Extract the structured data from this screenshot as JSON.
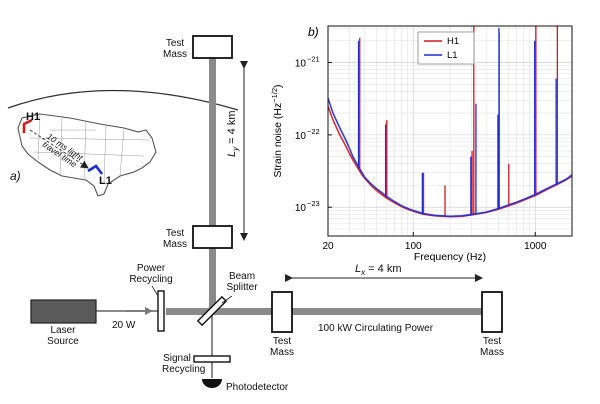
{
  "panel_a": {
    "label": "a)",
    "sites": [
      "H1",
      "L1"
    ],
    "arrow_text": "10 ms light\ntravel time"
  },
  "interferometer": {
    "test_mass_top": "Test\nMass",
    "test_mass_mid": "Test\nMass",
    "test_mass_near_x": "Test\nMass",
    "test_mass_end_x": "Test\nMass",
    "ly_symbol": "L",
    "ly_subscript": "y",
    "ly_value": " = 4 km",
    "lx_symbol": "L",
    "lx_subscript": "x",
    "lx_value": " = 4 km",
    "power_recycling": "Power\nRecycling",
    "beam_splitter": "Beam\nSplitter",
    "laser_source": "Laser\nSource",
    "laser_power": "20 W",
    "circulating_power": "100 kW Circulating Power",
    "signal_recycling": "Signal\nRecycling",
    "photodetector": "Photodetector",
    "colors": {
      "laser_box": "#5a5a5a",
      "beam": "#8a8a8a",
      "mirror_fill": "#ffffff"
    }
  },
  "chart_data": {
    "type": "line",
    "panel_label": "b)",
    "xlabel": "Frequency (Hz)",
    "ylabel": "Strain noise (Hz",
    "ylabel_exponent": "−1/2",
    "ylabel_close": ")",
    "x_scale": "log",
    "y_scale": "log",
    "xlim": [
      20,
      2000
    ],
    "ylim": [
      4e-24,
      3.2e-21
    ],
    "x_ticks": [
      {
        "value": 20,
        "label": "20"
      },
      {
        "value": 100,
        "label": "100"
      },
      {
        "value": 1000,
        "label": "1000"
      }
    ],
    "y_ticks": [
      {
        "value": 1e-23,
        "base": "10",
        "exp": "−23"
      },
      {
        "value": 1e-22,
        "base": "10",
        "exp": "−22"
      },
      {
        "value": 1e-21,
        "base": "10",
        "exp": "−21"
      }
    ],
    "grid": true,
    "legend_position": "top-center",
    "series": [
      {
        "name": "H1",
        "color": "#d7191c",
        "x": [
          20,
          22,
          25,
          28,
          30,
          32,
          35,
          38,
          40,
          45,
          50,
          55,
          60,
          70,
          80,
          90,
          100,
          120,
          150,
          200,
          250,
          300,
          400,
          500,
          600,
          700,
          800,
          1000,
          1200,
          1500,
          1800,
          2000
        ],
        "y": [
          2.5e-22,
          1.6e-22,
          1e-22,
          7e-23,
          5.5e-23,
          4.5e-23,
          3.5e-23,
          2.8e-23,
          2.5e-23,
          2e-23,
          1.7e-23,
          1.5e-23,
          1.35e-23,
          1.15e-23,
          1.02e-23,
          9.4e-24,
          8.8e-24,
          8e-24,
          7.6e-24,
          7.4e-24,
          7.5e-24,
          7.8e-24,
          8.5e-24,
          9.4e-24,
          1.04e-23,
          1.14e-23,
          1.25e-23,
          1.45e-23,
          1.7e-23,
          2.05e-23,
          2.4e-23,
          2.7e-23
        ],
        "lines": [
          {
            "x": 36,
            "y": 2.2e-21
          },
          {
            "x": 60,
            "y": 1.6e-22
          },
          {
            "x": 120,
            "y": 3e-23
          },
          {
            "x": 180,
            "y": 2e-23
          },
          {
            "x": 300,
            "y": 6e-23
          },
          {
            "x": 310,
            "y": 3.2e-21
          },
          {
            "x": 500,
            "y": 2.6e-21
          },
          {
            "x": 600,
            "y": 4e-23
          },
          {
            "x": 1000,
            "y": 3.2e-21
          },
          {
            "x": 1500,
            "y": 3.2e-21
          }
        ]
      },
      {
        "name": "L1",
        "color": "#1f2bd6",
        "x": [
          20,
          22,
          25,
          28,
          30,
          32,
          35,
          38,
          40,
          45,
          50,
          55,
          60,
          70,
          80,
          90,
          100,
          120,
          150,
          200,
          250,
          300,
          400,
          500,
          600,
          700,
          800,
          1000,
          1200,
          1500,
          1800,
          2000
        ],
        "y": [
          3.2e-22,
          2e-22,
          1.25e-22,
          8.5e-23,
          6.5e-23,
          5e-23,
          3.8e-23,
          3e-23,
          2.6e-23,
          2.1e-23,
          1.8e-23,
          1.6e-23,
          1.42e-23,
          1.2e-23,
          1.05e-23,
          9.6e-24,
          9e-24,
          8.2e-24,
          7.7e-24,
          7.5e-24,
          7.6e-24,
          7.9e-24,
          8.6e-24,
          9.6e-24,
          1.07e-23,
          1.17e-23,
          1.28e-23,
          1.5e-23,
          1.75e-23,
          2.1e-23,
          2.45e-23,
          2.8e-23
        ],
        "lines": [
          {
            "x": 36,
            "y": 2e-21
          },
          {
            "x": 60,
            "y": 1.4e-22
          },
          {
            "x": 120,
            "y": 3e-23
          },
          {
            "x": 300,
            "y": 5e-23
          },
          {
            "x": 330,
            "y": 2.7e-22
          },
          {
            "x": 500,
            "y": 1.9e-22
          },
          {
            "x": 510,
            "y": 3e-21
          },
          {
            "x": 1000,
            "y": 2e-21
          },
          {
            "x": 1500,
            "y": 6e-22
          }
        ]
      }
    ]
  }
}
